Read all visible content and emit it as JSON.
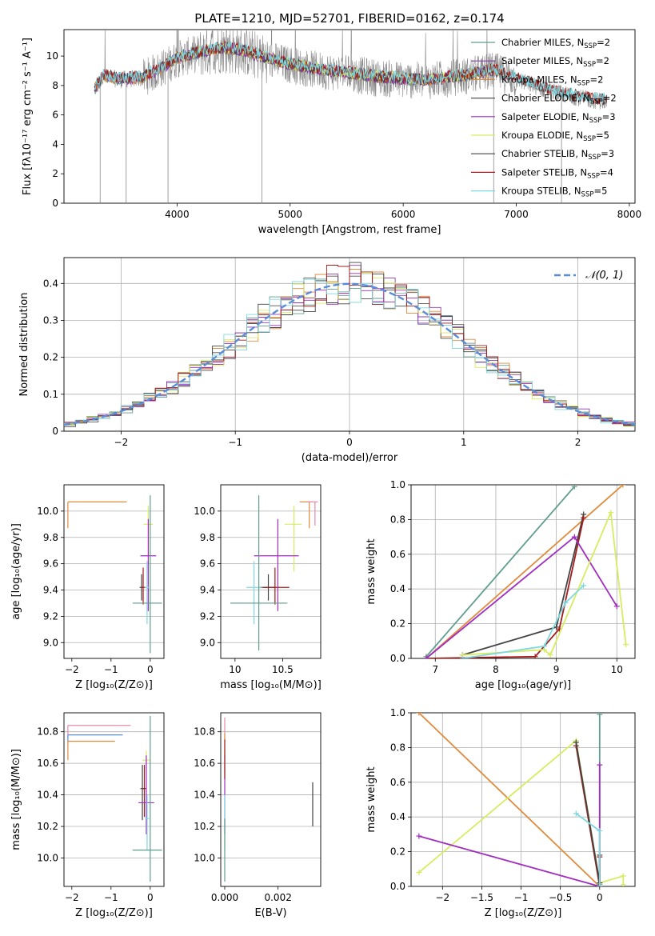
{
  "figure_title": "PLATE=1210, MJD=52701, FIBERID=0162, z=0.174",
  "chart_data": [
    {
      "id": "spectrum",
      "type": "line",
      "xlabel": "wavelength [Angstrom, rest frame]",
      "ylabel": "Flux [fλ10⁻¹⁷ erg cm⁻² s⁻¹ A⁻¹]",
      "xlim": [
        3000,
        8050
      ],
      "ylim": [
        0,
        11.8
      ],
      "xticks": [
        4000,
        5000,
        6000,
        7000,
        8000
      ],
      "yticks": [
        0,
        2,
        4,
        6,
        8,
        10
      ],
      "legend_position": "right",
      "data_range": [
        3270,
        7800
      ],
      "series": [
        {
          "name": "Chabrier MILES, N_SSP=2",
          "color": "#5f9e8f",
          "x_range": [
            3270,
            6900
          ]
        },
        {
          "name": "Salpeter MILES, N_SSP=2",
          "color": "#8e3aae",
          "x_range": [
            3270,
            6900
          ]
        },
        {
          "name": "Kroupa MILES, N_SSP=2",
          "color": "#e08a3c",
          "x_range": [
            3270,
            6900
          ]
        },
        {
          "name": "Chabrier ELODIE, N_SSP=2",
          "color": "#555555",
          "x_range": [
            3900,
            6800
          ]
        },
        {
          "name": "Salpeter ELODIE, N_SSP=3",
          "color": "#a02cc0",
          "x_range": [
            3900,
            6800
          ]
        },
        {
          "name": "Kroupa ELODIE, N_SSP=5",
          "color": "#d8ec60",
          "x_range": [
            3900,
            6800
          ]
        },
        {
          "name": "Chabrier STELIB, N_SSP=3",
          "color": "#444444",
          "x_range": [
            3270,
            7800
          ]
        },
        {
          "name": "Salpeter STELIB, N_SSP=4",
          "color": "#a51c1c",
          "x_range": [
            3270,
            7800
          ]
        },
        {
          "name": "Kroupa STELIB, N_SSP=5",
          "color": "#7fd8e0",
          "x_range": [
            3270,
            7800
          ]
        }
      ],
      "observed_color": "#8a8a8a",
      "model_continuum": [
        [
          3270,
          7.7
        ],
        [
          3350,
          8.6
        ],
        [
          3500,
          8.4
        ],
        [
          3700,
          8.5
        ],
        [
          3900,
          9.3
        ],
        [
          4000,
          9.8
        ],
        [
          4200,
          10.2
        ],
        [
          4400,
          10.5
        ],
        [
          4600,
          10.3
        ],
        [
          4800,
          9.8
        ],
        [
          5000,
          9.4
        ],
        [
          5200,
          9.1
        ],
        [
          5400,
          8.9
        ],
        [
          5600,
          8.7
        ],
        [
          5800,
          8.5
        ],
        [
          6000,
          8.4
        ],
        [
          6200,
          8.3
        ],
        [
          6400,
          8.5
        ],
        [
          6600,
          8.7
        ],
        [
          6800,
          9.0
        ],
        [
          7000,
          8.4
        ],
        [
          7300,
          7.6
        ],
        [
          7600,
          7.1
        ],
        [
          7800,
          6.9
        ]
      ]
    },
    {
      "id": "residuals",
      "type": "bar",
      "xlabel": "(data-model)/error",
      "ylabel": "Normed distribution",
      "xlim": [
        -2.5,
        2.5
      ],
      "ylim": [
        0,
        0.47
      ],
      "xticks": [
        -2,
        -1,
        0,
        1,
        2
      ],
      "yticks": [
        0.0,
        0.1,
        0.2,
        0.3,
        0.4
      ],
      "grid": true,
      "legend": "𝒩(0, 1)",
      "legend_position": "top-right",
      "normal_color": "#5b8bd9",
      "bin_width": 0.1,
      "histogram_colors": [
        "#5f9e8f",
        "#8e3aae",
        "#e08a3c",
        "#555555",
        "#a02cc0",
        "#d8ec60",
        "#444444",
        "#a51c1c",
        "#7fd8e0"
      ]
    },
    {
      "id": "age-vs-Z",
      "type": "scatter",
      "xlabel": "Z [log₁₀(Z/Z⊙)]",
      "ylabel": "age  [log₁₀(age/yr)]",
      "xlim": [
        -2.2,
        0.35
      ],
      "ylim": [
        8.88,
        10.2
      ],
      "xticks": [
        -2,
        -1,
        0
      ],
      "yticks": [
        9.0,
        9.2,
        9.4,
        9.6,
        9.8,
        10.0
      ],
      "points": [
        {
          "color": "#e08a3c",
          "x": -2.1,
          "y": 10.07,
          "xerr": [
            0,
            1.5
          ],
          "yerr": [
            0.2,
            0
          ]
        },
        {
          "color": "#d8ec60",
          "x": -0.05,
          "y": 9.9,
          "xerr": [
            0.12,
            0.12
          ],
          "yerr": [
            0.36,
            0.14
          ]
        },
        {
          "color": "#a02cc0",
          "x": -0.05,
          "y": 9.66,
          "xerr": [
            0.2,
            0.2
          ],
          "yerr": [
            0.42,
            0.28
          ]
        },
        {
          "color": "#444444",
          "x": -0.22,
          "y": 9.42,
          "xerr": [
            0.05,
            0.05
          ],
          "yerr": [
            0.1,
            0.1
          ]
        },
        {
          "color": "#a51c1c",
          "x": -0.18,
          "y": 9.42,
          "xerr": [
            0.05,
            0.05
          ],
          "yerr": [
            0.13,
            0.15
          ]
        },
        {
          "color": "#7fd8e0",
          "x": -0.08,
          "y": 9.42,
          "xerr": [
            0.05,
            0.05
          ],
          "yerr": [
            0.28,
            0.2
          ]
        },
        {
          "color": "#5f9e8f",
          "x": 0.0,
          "y": 9.3,
          "xerr": [
            0.45,
            0.3
          ],
          "yerr": [
            0.38,
            0.82
          ]
        }
      ]
    },
    {
      "id": "age-vs-mass",
      "type": "scatter",
      "xlabel": "mass [log₁₀(M/M⊙)]",
      "ylabel": "",
      "xlim": [
        9.85,
        10.9
      ],
      "ylim": [
        8.88,
        10.2
      ],
      "xticks": [
        10.0,
        10.5
      ],
      "yticks": [
        9.0,
        9.2,
        9.4,
        9.6,
        9.8,
        10.0
      ],
      "points": [
        {
          "color": "#e08a3c",
          "x": 10.78,
          "y": 10.07,
          "xerr": [
            0.1,
            0.03
          ],
          "yerr": [
            0.2,
            0
          ]
        },
        {
          "color": "#e489a8",
          "x": 10.84,
          "y": 10.07,
          "xerr": [
            0.08,
            0.03
          ],
          "yerr": [
            0.18,
            0
          ]
        },
        {
          "color": "#d8ec60",
          "x": 10.62,
          "y": 9.9,
          "xerr": [
            0.1,
            0.08
          ],
          "yerr": [
            0.36,
            0.14
          ]
        },
        {
          "color": "#a02cc0",
          "x": 10.45,
          "y": 9.66,
          "xerr": [
            0.25,
            0.22
          ],
          "yerr": [
            0.42,
            0.28
          ]
        },
        {
          "color": "#444444",
          "x": 10.35,
          "y": 9.42,
          "xerr": [
            0.1,
            0.08
          ],
          "yerr": [
            0.1,
            0.1
          ]
        },
        {
          "color": "#a51c1c",
          "x": 10.42,
          "y": 9.42,
          "xerr": [
            0.12,
            0.15
          ],
          "yerr": [
            0.13,
            0.15
          ]
        },
        {
          "color": "#7fd8e0",
          "x": 10.2,
          "y": 9.42,
          "xerr": [
            0.08,
            0.08
          ],
          "yerr": [
            0.28,
            0.2
          ]
        },
        {
          "color": "#5f9e8f",
          "x": 10.25,
          "y": 9.3,
          "xerr": [
            0.3,
            0.3
          ],
          "yerr": [
            0.36,
            0.82
          ]
        }
      ]
    },
    {
      "id": "weight-vs-age",
      "type": "line",
      "xlabel": "age  [log₁₀(age/yr)]",
      "ylabel": "mass weight",
      "xlim": [
        6.6,
        10.3
      ],
      "ylim": [
        0,
        1.0
      ],
      "xticks": [
        7,
        8,
        9,
        10
      ],
      "yticks": [
        0.0,
        0.2,
        0.4,
        0.6,
        0.8,
        1.0
      ],
      "grid": true,
      "series": [
        {
          "color": "#5f9e8f",
          "points": [
            [
              6.85,
              0.01
            ],
            [
              9.3,
              0.99
            ]
          ]
        },
        {
          "color": "#e08a3c",
          "points": [
            [
              6.85,
              0.0
            ],
            [
              10.1,
              1.0
            ]
          ]
        },
        {
          "color": "#444444",
          "points": [
            [
              7.45,
              0.02
            ],
            [
              9.0,
              0.18
            ],
            [
              9.45,
              0.83
            ]
          ]
        },
        {
          "color": "#a51c1c",
          "points": [
            [
              6.85,
              0.0
            ],
            [
              8.65,
              0.01
            ],
            [
              9.05,
              0.17
            ],
            [
              9.45,
              0.81
            ]
          ]
        },
        {
          "color": "#a02cc0",
          "points": [
            [
              6.85,
              0.0
            ],
            [
              9.3,
              0.7
            ],
            [
              10.0,
              0.3
            ]
          ]
        },
        {
          "color": "#d8ec60",
          "points": [
            [
              7.45,
              0.02
            ],
            [
              8.8,
              0.05
            ],
            [
              8.9,
              0.02
            ],
            [
              9.9,
              0.84
            ],
            [
              10.15,
              0.08
            ]
          ]
        },
        {
          "color": "#7fd8e0",
          "points": [
            [
              7.45,
              0.0
            ],
            [
              8.8,
              0.07
            ],
            [
              9.15,
              0.32
            ],
            [
              9.45,
              0.42
            ]
          ]
        }
      ]
    },
    {
      "id": "mass-vs-Z",
      "type": "scatter",
      "xlabel": "Z [log₁₀(Z/Z⊙)]",
      "ylabel": "mass [log₁₀(M/M⊙)]",
      "xlim": [
        -2.2,
        0.35
      ],
      "ylim": [
        9.82,
        10.92
      ],
      "xticks": [
        -2,
        -1,
        0
      ],
      "yticks": [
        10.0,
        10.2,
        10.4,
        10.6,
        10.8
      ],
      "points": [
        {
          "color": "#e489a8",
          "x": -2.1,
          "y": 10.84,
          "xerr": [
            0,
            1.6
          ],
          "yerr": [
            0.08,
            0.0
          ]
        },
        {
          "color": "#5b8bd9",
          "x": -2.1,
          "y": 10.78,
          "xerr": [
            0,
            1.4
          ],
          "yerr": [
            0.05,
            0.0
          ]
        },
        {
          "color": "#e08a3c",
          "x": -2.1,
          "y": 10.74,
          "xerr": [
            0,
            1.2
          ],
          "yerr": [
            0.12,
            0.0
          ]
        },
        {
          "color": "#d8ec60",
          "x": -0.1,
          "y": 10.62,
          "xerr": [
            0.1,
            0.1
          ],
          "yerr": [
            0.08,
            0.06
          ]
        },
        {
          "color": "#444444",
          "x": -0.2,
          "y": 10.44,
          "xerr": [
            0.05,
            0.05
          ],
          "yerr": [
            0.2,
            0.15
          ]
        },
        {
          "color": "#a51c1c",
          "x": -0.15,
          "y": 10.44,
          "xerr": [
            0.05,
            0.05
          ],
          "yerr": [
            0.18,
            0.15
          ]
        },
        {
          "color": "#a02cc0",
          "x": -0.1,
          "y": 10.35,
          "xerr": [
            0.2,
            0.2
          ],
          "yerr": [
            0.2,
            0.3
          ]
        },
        {
          "color": "#7fd8e0",
          "x": -0.08,
          "y": 10.25,
          "xerr": [
            0.05,
            0.05
          ],
          "yerr": [
            0.2,
            0.15
          ]
        },
        {
          "color": "#5f9e8f",
          "x": 0.0,
          "y": 10.05,
          "xerr": [
            0.45,
            0.3
          ],
          "yerr": [
            0.2,
            0.85
          ]
        }
      ]
    },
    {
      "id": "mass-vs-ebv",
      "type": "scatter",
      "xlabel": "E(B-V)",
      "ylabel": "",
      "xlim": [
        -0.00015,
        0.0036
      ],
      "ylim": [
        9.82,
        10.92
      ],
      "xticks": [
        0.0,
        0.002
      ],
      "xtick_labels": [
        "0.000",
        "0.002"
      ],
      "yticks": [
        10.0,
        10.2,
        10.4,
        10.6,
        10.8
      ],
      "points": [
        {
          "color": "#e489a8",
          "x": 0.0,
          "y": 10.84,
          "yerr": [
            0.1,
            0.05
          ]
        },
        {
          "color": "#e08a3c",
          "x": 0.0,
          "y": 10.74,
          "yerr": [
            0.1,
            0.05
          ]
        },
        {
          "color": "#d8ec60",
          "x": 0.0,
          "y": 10.62,
          "yerr": [
            0.08,
            0.06
          ]
        },
        {
          "color": "#a02cc0",
          "x": 0.0,
          "y": 10.35,
          "yerr": [
            0.2,
            0.3
          ]
        },
        {
          "color": "#a51c1c",
          "x": 0.0,
          "y": 10.6,
          "yerr": [
            0.1,
            0.15
          ]
        },
        {
          "color": "#7fd8e0",
          "x": 0.0,
          "y": 10.25,
          "yerr": [
            0.2,
            0.15
          ]
        },
        {
          "color": "#5f9e8f",
          "x": 0.0,
          "y": 10.05,
          "yerr": [
            0.2,
            0.2
          ]
        },
        {
          "color": "#444444",
          "x": 0.0033,
          "y": 10.34,
          "yerr": [
            0.14,
            0.14
          ]
        }
      ]
    },
    {
      "id": "weight-vs-Z",
      "type": "line",
      "xlabel": "Z [log₁₀(Z/Z⊙)]",
      "ylabel": "mass weight",
      "xlim": [
        -2.4,
        0.45
      ],
      "ylim": [
        0,
        1.0
      ],
      "xticks": [
        -2.0,
        -1.5,
        -1.0,
        -0.5,
        0.0
      ],
      "yticks": [
        0.0,
        0.2,
        0.4,
        0.6,
        0.8,
        1.0
      ],
      "grid": true,
      "series": [
        {
          "color": "#e08a3c",
          "points": [
            [
              -2.3,
              1.0
            ],
            [
              0.0,
              0.0
            ]
          ]
        },
        {
          "color": "#5f9e8f",
          "points": [
            [
              0.0,
              0.01
            ],
            [
              0.0,
              0.99
            ]
          ]
        },
        {
          "color": "#d8ec60",
          "points": [
            [
              -2.3,
              0.08
            ],
            [
              -0.3,
              0.84
            ],
            [
              0.0,
              0.02
            ],
            [
              0.3,
              0.06
            ],
            [
              0.3,
              0.01
            ]
          ]
        },
        {
          "color": "#a02cc0",
          "points": [
            [
              -2.3,
              0.29
            ],
            [
              0.0,
              0.0
            ],
            [
              0.0,
              0.7
            ]
          ]
        },
        {
          "color": "#a51c1c",
          "points": [
            [
              -0.3,
              0.81
            ],
            [
              0.0,
              0.0
            ],
            [
              0.0,
              0.17
            ]
          ]
        },
        {
          "color": "#444444",
          "points": [
            [
              -0.3,
              0.83
            ],
            [
              0.0,
              0.02
            ],
            [
              0.0,
              0.18
            ]
          ]
        },
        {
          "color": "#7fd8e0",
          "points": [
            [
              -0.3,
              0.42
            ],
            [
              0.0,
              0.32
            ],
            [
              0.0,
              0.0
            ]
          ]
        }
      ]
    }
  ]
}
